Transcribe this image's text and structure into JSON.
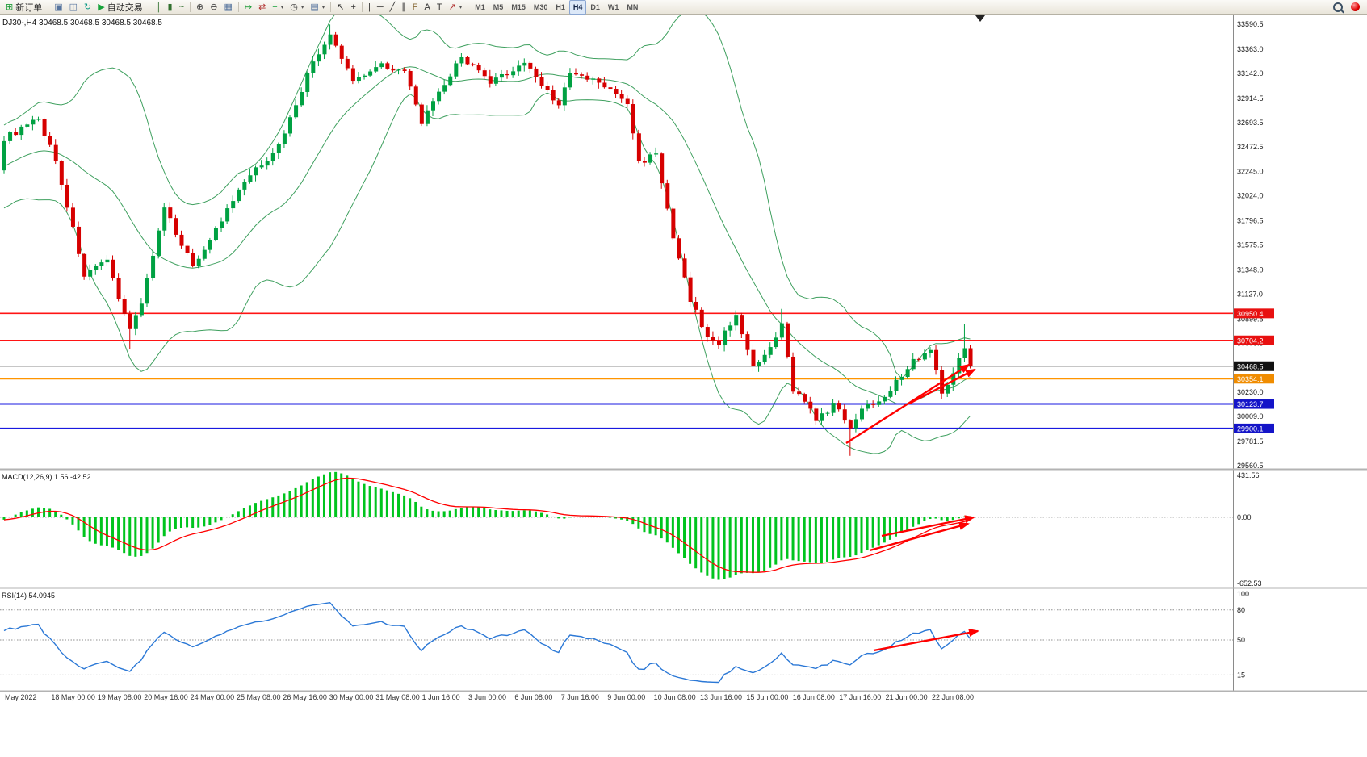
{
  "toolbar": {
    "caret_glyph": "▾",
    "icon_groups": [
      {
        "items": [
          {
            "name": "new-order-button",
            "icon": "new-order-icon",
            "glyph": "⊞",
            "color": "#1f9d3a",
            "label": "新订单"
          }
        ]
      },
      {
        "items": [
          {
            "name": "charts-window-button",
            "icon": "chart-window-icon",
            "glyph": "▣",
            "color": "#56749e"
          },
          {
            "name": "profiles-button",
            "icon": "profiles-icon",
            "glyph": "◫",
            "color": "#56749e"
          },
          {
            "name": "refresh-button",
            "icon": "refresh-icon",
            "glyph": "↻",
            "color": "#0b9a86"
          },
          {
            "name": "auto-trading-button",
            "icon": "play-icon",
            "glyph": "▶",
            "color": "#17a33b",
            "label": "自动交易"
          }
        ]
      },
      {
        "items": [
          {
            "name": "bar-chart-button",
            "icon": "bar-chart-icon",
            "glyph": "║",
            "color": "#31702f"
          },
          {
            "name": "candlestick-chart-button",
            "icon": "candlestick-icon",
            "glyph": "▮",
            "color": "#31702f"
          },
          {
            "name": "line-chart-button",
            "icon": "line-chart-icon",
            "glyph": "~",
            "color": "#31702f"
          }
        ]
      },
      {
        "items": [
          {
            "name": "zoom-in-button",
            "icon": "zoom-in-icon",
            "glyph": "⊕",
            "color": "#444444"
          },
          {
            "name": "zoom-out-button",
            "icon": "zoom-out-icon",
            "glyph": "⊖",
            "color": "#444444"
          },
          {
            "name": "tile-windows-button",
            "icon": "tile-windows-icon",
            "glyph": "▦",
            "color": "#56749e"
          }
        ]
      },
      {
        "items": [
          {
            "name": "auto-scroll-button",
            "icon": "auto-scroll-icon",
            "glyph": "↦",
            "color": "#1f9d3a"
          },
          {
            "name": "chart-shift-button",
            "icon": "chart-shift-icon",
            "glyph": "⇄",
            "color": "#b03030"
          },
          {
            "name": "indicators-button",
            "icon": "add-indicator-icon",
            "glyph": "+",
            "color": "#17a33b",
            "caret": true
          },
          {
            "name": "periods-button",
            "icon": "clock-icon",
            "glyph": "◷",
            "color": "#444444",
            "caret": true
          },
          {
            "name": "templates-button",
            "icon": "template-icon",
            "glyph": "▤",
            "color": "#56749e",
            "caret": true
          }
        ]
      },
      {
        "items": [
          {
            "name": "cursor-button",
            "icon": "cursor-icon",
            "glyph": "↖",
            "color": "#333333"
          },
          {
            "name": "crosshair-button",
            "icon": "crosshair-icon",
            "glyph": "+",
            "color": "#333333"
          }
        ]
      },
      {
        "items": [
          {
            "name": "vertical-line-button",
            "icon": "vertical-line-icon",
            "glyph": "|",
            "color": "#333333"
          },
          {
            "name": "horizontal-line-button",
            "icon": "horizontal-line-icon",
            "glyph": "─",
            "color": "#333333"
          },
          {
            "name": "trendline-button",
            "icon": "trendline-icon",
            "glyph": "╱",
            "color": "#333333"
          },
          {
            "name": "channel-button",
            "icon": "channel-icon",
            "glyph": "∥",
            "color": "#333333"
          },
          {
            "name": "fibonacci-button",
            "icon": "fibonacci-icon",
            "glyph": "F",
            "color": "#8a6d3b"
          },
          {
            "name": "text-button",
            "icon": "text-icon",
            "glyph": "A",
            "color": "#333333"
          },
          {
            "name": "label-button",
            "icon": "label-icon",
            "glyph": "T",
            "color": "#333333"
          },
          {
            "name": "arrows-button",
            "icon": "arrow-object-icon",
            "glyph": "↗",
            "color": "#b03030",
            "caret": true
          }
        ]
      }
    ],
    "timeframes": [
      "M1",
      "M5",
      "M15",
      "M30",
      "H1",
      "H4",
      "D1",
      "W1",
      "MN"
    ],
    "active_timeframe": "H4"
  },
  "chart": {
    "symbol_line": "DJ30-,H4  30468.5 30468.5 30468.5 30468.5",
    "current_price": "30468.5",
    "axis_labels": [
      "33590.5",
      "33363.0",
      "33142.0",
      "32914.5",
      "32693.5",
      "32472.5",
      "32245.0",
      "32024.0",
      "31796.5",
      "31575.5",
      "31348.0",
      "31127.0",
      "30899.5",
      "30678.5",
      "30451.0",
      "30230.0",
      "30009.0",
      "29781.5",
      "29560.5"
    ],
    "badges": [
      {
        "value": "30950.4",
        "bg": "#e81010"
      },
      {
        "value": "30704.2",
        "bg": "#e81010"
      },
      {
        "value": "30468.5",
        "bg": "#111111"
      },
      {
        "value": "30354.1",
        "bg": "#f08c00"
      },
      {
        "value": "30123.7",
        "bg": "#1414c8"
      },
      {
        "value": "29900.1",
        "bg": "#1414c8"
      }
    ],
    "hlines": [
      {
        "price": 30950.4,
        "color": "#ff1414",
        "w": 1.6
      },
      {
        "price": 30704.2,
        "color": "#ff1414",
        "w": 1.6
      },
      {
        "price": 30354.1,
        "color": "#ff9500",
        "w": 2
      },
      {
        "price": 30123.7,
        "color": "#1a1ae0",
        "w": 2
      },
      {
        "price": 29900.1,
        "color": "#1a1ae0",
        "w": 2
      }
    ],
    "current_line": {
      "price": 30468.5,
      "color": "#1a1a1a",
      "w": 1
    }
  },
  "macd": {
    "label": "MACD(12,26,9) 1.56 -42.52",
    "axis_labels": [
      "431.56",
      "0.00",
      "-652.53"
    ]
  },
  "rsi": {
    "label": "RSI(14) 54.0945",
    "axis_labels": [
      "100",
      "80",
      "50",
      "15"
    ],
    "levels": [
      80,
      50,
      15
    ]
  },
  "time_axis": {
    "labels": [
      "May 2022",
      "18 May 00:00",
      "19 May 08:00",
      "20 May 16:00",
      "24 May 00:00",
      "25 May 08:00",
      "26 May 16:00",
      "30 May 00:00",
      "31 May 08:00",
      "1 Jun 16:00",
      "3 Jun 00:00",
      "6 Jun 08:00",
      "7 Jun 16:00",
      "9 Jun 00:00",
      "10 Jun 08:00",
      "13 Jun 16:00",
      "15 Jun 00:00",
      "16 Jun 08:00",
      "17 Jun 16:00",
      "21 Jun 00:00",
      "22 Jun 08:00"
    ]
  },
  "chart_data": {
    "type": "candlestick",
    "symbol": "DJ30-",
    "timeframe": "H4",
    "bars_visible": 170,
    "price_axis_top": 33679,
    "price_axis_bottom": 29531,
    "close_path_anchors": [
      [
        0,
        32550
      ],
      [
        6,
        32720
      ],
      [
        9,
        32350
      ],
      [
        14,
        31300
      ],
      [
        18,
        31420
      ],
      [
        22,
        30800
      ],
      [
        24,
        31060
      ],
      [
        28,
        31900
      ],
      [
        33,
        31380
      ],
      [
        38,
        31800
      ],
      [
        42,
        32150
      ],
      [
        48,
        32480
      ],
      [
        54,
        33250
      ],
      [
        57,
        33480
      ],
      [
        61,
        33080
      ],
      [
        66,
        33230
      ],
      [
        70,
        33150
      ],
      [
        73,
        32700
      ],
      [
        76,
        32950
      ],
      [
        80,
        33300
      ],
      [
        85,
        33050
      ],
      [
        91,
        33240
      ],
      [
        97,
        32850
      ],
      [
        99,
        33140
      ],
      [
        104,
        33060
      ],
      [
        109,
        32870
      ],
      [
        111,
        32320
      ],
      [
        114,
        32420
      ],
      [
        117,
        31620
      ],
      [
        120,
        31080
      ],
      [
        123,
        30720
      ],
      [
        125,
        30680
      ],
      [
        128,
        30950
      ],
      [
        131,
        30440
      ],
      [
        134,
        30620
      ],
      [
        136,
        30840
      ],
      [
        138,
        30260
      ],
      [
        140,
        30160
      ],
      [
        142,
        29960
      ],
      [
        145,
        30120
      ],
      [
        148,
        29920
      ],
      [
        150,
        30080
      ],
      [
        153,
        30160
      ],
      [
        156,
        30320
      ],
      [
        159,
        30520
      ],
      [
        162,
        30620
      ],
      [
        164,
        30220
      ],
      [
        166,
        30430
      ],
      [
        168,
        30620
      ],
      [
        169,
        30468.5
      ]
    ],
    "wick_high_extra": {
      "57": 80,
      "136": 110,
      "168": 170
    },
    "wick_low_extra": {
      "22": 130,
      "148": 230
    },
    "overlays": {
      "bollinger_period": 20,
      "bollinger_deviation": 2
    },
    "horizontal_levels": [
      30950.4,
      30704.2,
      30468.5,
      30354.1,
      30123.7,
      29900.1
    ],
    "macd": {
      "fast": 12,
      "slow": 26,
      "signal": 9,
      "current_main": 1.56,
      "current_signal": -42.52,
      "scale_max": 431.56,
      "scale_min": -652.53
    },
    "rsi": {
      "period": 14,
      "current": 54.0945,
      "scale_min": 0,
      "scale_max": 100,
      "levels": [
        80,
        50,
        15
      ]
    }
  },
  "drawings": {
    "main_arrows": [
      [
        1048,
        549,
        1200,
        452
      ],
      [
        1126,
        500,
        1207,
        458
      ]
    ],
    "macd_arrows": [
      [
        1077,
        682,
        1199,
        649
      ],
      [
        1092,
        664,
        1206,
        641
      ]
    ],
    "rsi_arrows": [
      [
        1082,
        806,
        1211,
        782
      ]
    ]
  },
  "colors": {
    "candle_up": "#00a142",
    "candle_down": "#d60000",
    "bollinger": "#3fa05f",
    "macd_histogram": "#00c41e",
    "macd_signal": "#ff0000",
    "rsi_line": "#2b78d6",
    "arrow": "#ff0000",
    "axis_text": "#1a1a1a"
  }
}
